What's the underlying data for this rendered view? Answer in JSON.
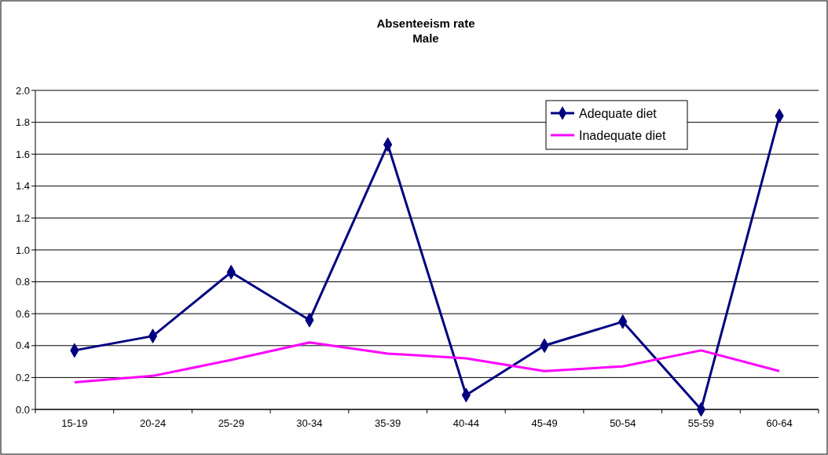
{
  "chart_data": {
    "type": "line",
    "title": "Absenteeism rate\nMale",
    "categories": [
      "15-19",
      "20-24",
      "25-29",
      "30-34",
      "35-39",
      "40-44",
      "45-49",
      "50-54",
      "55-59",
      "60-64"
    ],
    "series": [
      {
        "name": "Adequate diet",
        "color": "#000080",
        "marker": "diamond",
        "values": [
          0.37,
          0.46,
          0.86,
          0.56,
          1.66,
          0.09,
          0.4,
          0.55,
          0.0,
          1.84
        ]
      },
      {
        "name": "Inadequate diet",
        "color": "#ff00ff",
        "marker": "none",
        "values": [
          0.17,
          0.21,
          0.31,
          0.42,
          0.35,
          0.32,
          0.24,
          0.27,
          0.37,
          0.24
        ]
      }
    ],
    "ylim": [
      0,
      2
    ],
    "yticks": [
      {
        "value": 0,
        "label": "0.0"
      },
      {
        "value": 0.2,
        "label": "0.2"
      },
      {
        "value": 0.4,
        "label": "0.4"
      },
      {
        "value": 0.6,
        "label": "0.6"
      },
      {
        "value": 0.8,
        "label": "0.8"
      },
      {
        "value": 1,
        "label": "1.0"
      },
      {
        "value": 1.2,
        "label": "1.2"
      },
      {
        "value": 1.4,
        "label": "1.4"
      },
      {
        "value": 1.6,
        "label": "1.6"
      },
      {
        "value": 1.8,
        "label": "1.8"
      },
      {
        "value": 2,
        "label": "2.0"
      }
    ],
    "grid": "y",
    "legend": "top right",
    "line_style": "solid"
  }
}
